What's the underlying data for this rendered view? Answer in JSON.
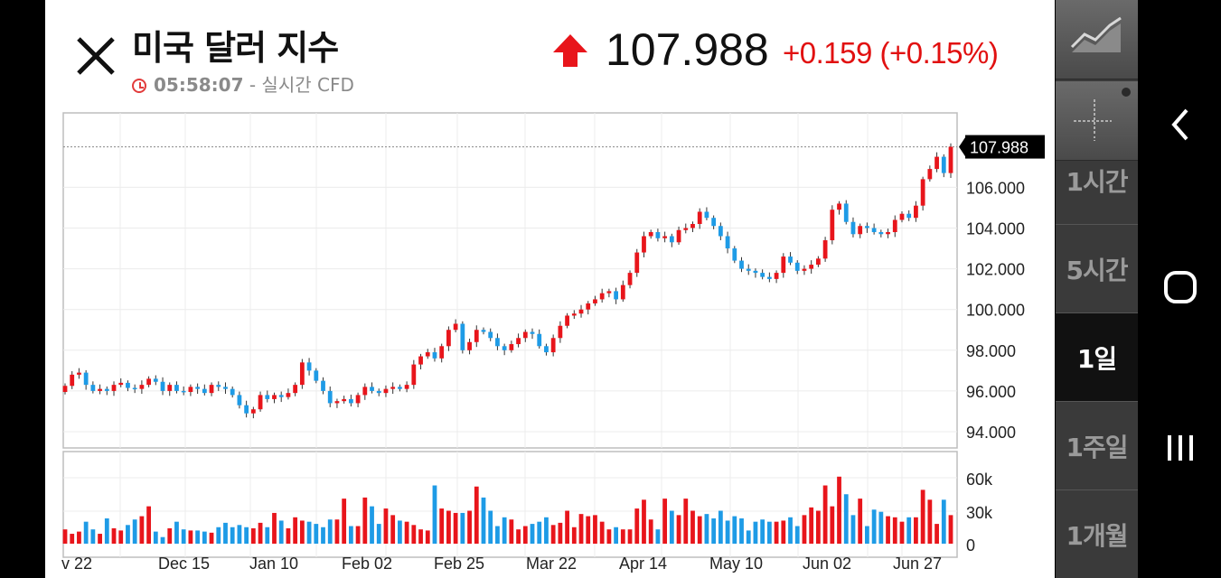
{
  "header": {
    "title": "미국 달러 지수",
    "time": "05:58:07",
    "subtitle_suffix": " - 실시간 CFD",
    "price": "107.988",
    "change": "+0.159  (+0.15%)"
  },
  "colors": {
    "up": "#e8151b",
    "down": "#1e9be6",
    "arrow": "#e8151b",
    "last_bg": "#000000"
  },
  "timeframes": [
    {
      "label": "1시간",
      "active": false
    },
    {
      "label": "5시간",
      "active": false
    },
    {
      "label": "1일",
      "active": true
    },
    {
      "label": "1주일",
      "active": false
    },
    {
      "label": "1개월",
      "active": false
    }
  ],
  "chart_data": {
    "type": "candlestick",
    "last_price_label": "107.988",
    "price_axis": {
      "min": 94,
      "max": 108,
      "ticks": [
        "94.000",
        "96.000",
        "98.000",
        "100.000",
        "102.000",
        "104.000",
        "106.000"
      ]
    },
    "volume_axis": {
      "min": 0,
      "max": 60000,
      "ticks": [
        "0",
        "30k",
        "60k"
      ]
    },
    "x_labels": [
      "v 22",
      "Dec 15",
      "Jan 10",
      "Feb 02",
      "Feb 25",
      "Mar 22",
      "Apr 14",
      "May 10",
      "Jun 02",
      "Jun 27"
    ],
    "close": [
      96.25,
      96.8,
      96.9,
      96.3,
      96.0,
      96.1,
      96.0,
      96.3,
      96.4,
      96.15,
      96.1,
      96.3,
      96.6,
      96.45,
      96.0,
      96.3,
      96.0,
      95.95,
      96.2,
      96.1,
      95.9,
      96.3,
      96.2,
      96.1,
      95.8,
      95.3,
      94.9,
      95.1,
      95.8,
      95.6,
      95.8,
      95.7,
      95.9,
      96.3,
      97.4,
      97.0,
      96.5,
      96.0,
      95.4,
      95.5,
      95.6,
      95.4,
      95.8,
      96.2,
      96.0,
      95.9,
      96.1,
      96.2,
      96.1,
      96.3,
      97.3,
      97.7,
      97.9,
      97.6,
      98.2,
      99.0,
      99.3,
      98.0,
      98.4,
      99.0,
      98.9,
      98.6,
      98.2,
      98.0,
      98.3,
      98.6,
      98.9,
      98.8,
      98.2,
      97.9,
      98.6,
      99.2,
      99.7,
      99.8,
      100.0,
      100.3,
      100.5,
      100.8,
      100.9,
      100.5,
      101.2,
      101.8,
      102.8,
      103.6,
      103.8,
      103.5,
      103.6,
      103.3,
      103.9,
      104.0,
      104.2,
      104.8,
      104.5,
      104.1,
      103.6,
      103.0,
      102.4,
      102.0,
      101.9,
      101.8,
      101.6,
      101.5,
      101.8,
      102.6,
      102.3,
      101.9,
      102.0,
      102.2,
      102.5,
      103.4,
      104.9,
      105.2,
      104.3,
      103.7,
      104.1,
      104.0,
      103.8,
      103.7,
      103.8,
      104.4,
      104.7,
      104.5,
      105.1,
      106.4,
      106.9,
      107.5,
      106.7,
      107.99
    ],
    "volume": [
      13000,
      9000,
      11000,
      20000,
      13000,
      9000,
      23000,
      14000,
      12000,
      17000,
      22000,
      25000,
      34000,
      11000,
      6000,
      14000,
      20000,
      13000,
      12000,
      12000,
      11000,
      10000,
      15000,
      19000,
      15000,
      17000,
      15000,
      14000,
      19000,
      15000,
      28000,
      21000,
      14000,
      24000,
      21000,
      20000,
      18000,
      15000,
      22000,
      22000,
      41000,
      16000,
      16000,
      42000,
      34000,
      18000,
      32000,
      26000,
      21000,
      20000,
      17000,
      13000,
      12000,
      53000,
      32000,
      30000,
      28000,
      28000,
      30000,
      52000,
      42000,
      30000,
      16000,
      24000,
      22000,
      13000,
      16000,
      18000,
      20000,
      24000,
      17000,
      19000,
      30000,
      15000,
      27000,
      25000,
      26000,
      20000,
      13000,
      15000,
      13000,
      13000,
      32000,
      40000,
      22000,
      13000,
      41000,
      30000,
      26000,
      41000,
      30000,
      25000,
      27000,
      23000,
      30000,
      21000,
      25000,
      23000,
      12000,
      20000,
      22000,
      20000,
      20000,
      21000,
      24000,
      16000,
      26000,
      33000,
      30000,
      53000,
      34000,
      61000,
      45000,
      26000,
      41000,
      16000,
      31000,
      29000,
      25000,
      24000,
      20000,
      24000,
      24000,
      49000,
      40000,
      18000,
      40000,
      26000
    ]
  },
  "navbar": [
    "back",
    "home",
    "recent"
  ]
}
